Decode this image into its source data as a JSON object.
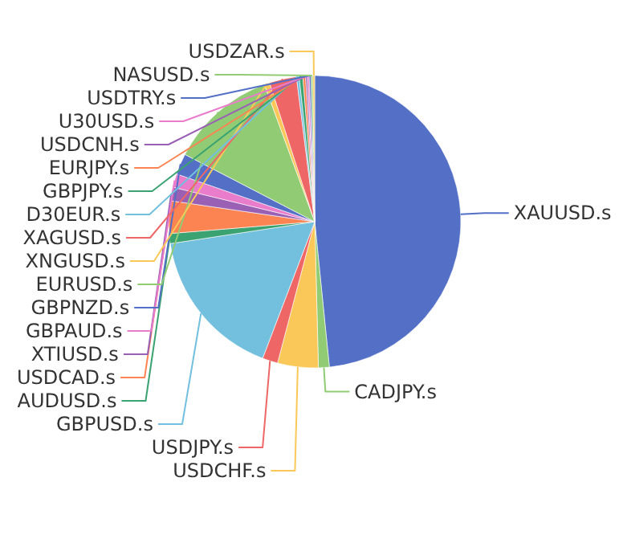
{
  "chart_data": {
    "type": "pie",
    "categories": [
      "XAUUSD.s",
      "CADJPY.s",
      "USDCHF.s",
      "USDJPY.s",
      "GBPUSD.s",
      "AUDUSD.s",
      "USDCAD.s",
      "XTIUSD.s",
      "GBPAUD.s",
      "GBPNZD.s",
      "EURUSD.s",
      "XNGUSD.s",
      "XAGUSD.s",
      "D30EUR.s",
      "GBPJPY.s",
      "EURJPY.s",
      "USDCNH.s",
      "U30USD.s",
      "USDTRY.s",
      "NASUSD.s",
      "USDZAR.s"
    ],
    "values": [
      48.4,
      1.2,
      4.5,
      1.7,
      16.8,
      1.1,
      3.6,
      1.5,
      1.5,
      2.3,
      11.8,
      0.6,
      3.0,
      0.3,
      0.4,
      0.3,
      0.2,
      0.2,
      0.2,
      0.2,
      0.2
    ],
    "colors": [
      "#5470c6",
      "#91cc75",
      "#fac858",
      "#ee6666",
      "#73c0de",
      "#3ba272",
      "#fc8452",
      "#9a60b4",
      "#ea7ccc",
      "#5470c6",
      "#91cc75",
      "#fac858",
      "#ee6666",
      "#73c0de",
      "#3ba272",
      "#fc8452",
      "#9a60b4",
      "#ea7ccc",
      "#5470c6",
      "#91cc75",
      "#fac858"
    ]
  }
}
